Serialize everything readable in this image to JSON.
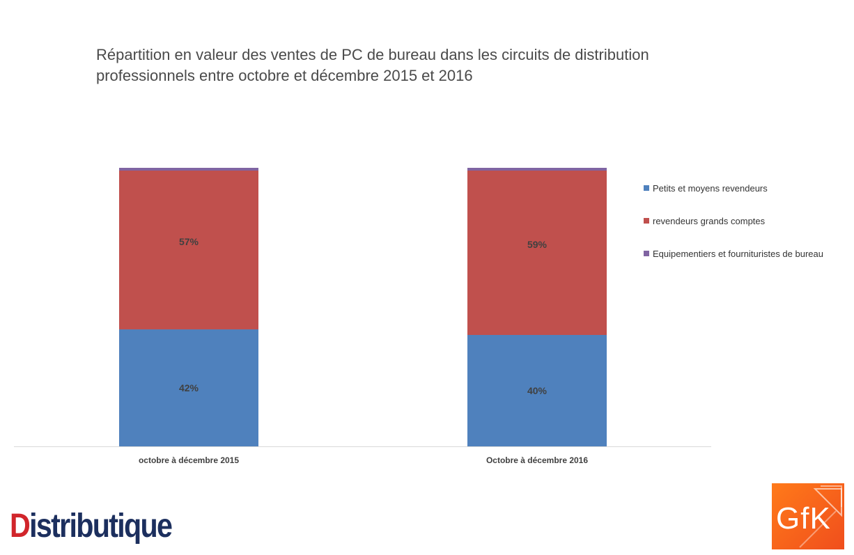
{
  "title": "Répartition en valeur des ventes de PC de bureau dans les circuits de distribution professionnels entre octobre et décembre 2015 et 2016",
  "chart_data": {
    "type": "bar",
    "stacked": true,
    "title": "Répartition en valeur des ventes de PC de bureau dans les circuits de distribution professionnels entre octobre et décembre 2015 et 2016",
    "categories": [
      "octobre à décembre 2015",
      "Octobre à décembre 2016"
    ],
    "series": [
      {
        "name": "Petits et moyens revendeurs",
        "values": [
          42,
          40
        ],
        "labels": [
          "42%",
          "40%"
        ],
        "color": "#4f81bd"
      },
      {
        "name": "revendeurs grands comptes",
        "values": [
          57,
          59
        ],
        "labels": [
          "57%",
          "59%"
        ],
        "color": "#c0504d"
      },
      {
        "name": "Equipementiers et fournituristes de bureau",
        "values": [
          1,
          1
        ],
        "labels": [
          "",
          ""
        ],
        "color": "#8064a2"
      }
    ],
    "ylim": [
      0,
      100
    ],
    "grid": false,
    "legend": "right"
  },
  "logos": {
    "distributique": {
      "first": "D",
      "rest": "istributique"
    },
    "gfk": "GfK"
  }
}
